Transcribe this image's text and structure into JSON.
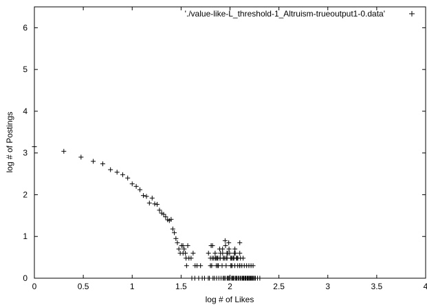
{
  "chart_data": {
    "type": "scatter",
    "title": "",
    "xlabel": "log # of Likes",
    "ylabel": "log # of Postings",
    "xlim": [
      0,
      4
    ],
    "ylim": [
      0,
      6.5
    ],
    "xticks": [
      "0",
      "0.5",
      "1",
      "1.5",
      "2",
      "2.5",
      "3",
      "3.5",
      "4"
    ],
    "xtick_values": [
      0,
      0.5,
      1,
      1.5,
      2,
      2.5,
      3,
      3.5,
      4
    ],
    "yticks": [
      "0",
      "1",
      "2",
      "3",
      "4",
      "5",
      "6"
    ],
    "ytick_values": [
      0,
      1,
      2,
      3,
      4,
      5,
      6
    ],
    "legend_position": "top-right",
    "grid": false,
    "marker": "+",
    "series": [
      {
        "name": "'./value-like-L_threshold-1_Altruism-trueoutput1-0.data'",
        "color": "#000000",
        "x": [
          0.0,
          0.301,
          0.477,
          0.602,
          0.699,
          0.778,
          0.845,
          0.903,
          0.954,
          1.0,
          1.041,
          1.079,
          1.114,
          1.146,
          1.176,
          1.204,
          1.23,
          1.255,
          1.279,
          1.301,
          1.322,
          1.342,
          1.362,
          1.38,
          1.398,
          1.415,
          1.431,
          1.447,
          1.462,
          1.477,
          1.491,
          1.505,
          1.519,
          1.531,
          1.544,
          1.556,
          1.568,
          1.58,
          1.602,
          1.623,
          1.643,
          1.663,
          1.699,
          1.716,
          1.74,
          1.778,
          1.79,
          1.8,
          1.813,
          1.826,
          1.84,
          1.851,
          1.863,
          1.875,
          1.886,
          1.898,
          1.908,
          1.919,
          1.929,
          1.94,
          1.95,
          1.96,
          1.97,
          1.98,
          1.99,
          2.0,
          2.009,
          2.017,
          2.025,
          2.033,
          2.041,
          2.049,
          2.057,
          2.064,
          2.072,
          2.079,
          2.086,
          2.093,
          2.1,
          2.107,
          2.114,
          2.121,
          2.127,
          2.134,
          2.14,
          2.146,
          2.152,
          2.158,
          2.164,
          2.17,
          2.176,
          2.182,
          2.188,
          2.193,
          2.199,
          2.204,
          2.21,
          2.215,
          2.22,
          2.225,
          2.23,
          2.236,
          2.241,
          2.25,
          2.26,
          2.281,
          2.305,
          1.807,
          1.821,
          1.848,
          1.876,
          1.903,
          1.924,
          1.954,
          1.968,
          1.987,
          2.013,
          2.045,
          2.072,
          2.1,
          1.834,
          1.869,
          1.895,
          1.932,
          1.96,
          1.996,
          2.024,
          2.053,
          2.08,
          2.107,
          2.134,
          1.82,
          1.857,
          1.9,
          1.942,
          1.978,
          2.008,
          2.036,
          2.066,
          2.1,
          1.86,
          1.925,
          1.97,
          2.02,
          2.05,
          1.95,
          1.99,
          2.04,
          2.1,
          1.78,
          1.8,
          1.88,
          1.98,
          2.01,
          1.61,
          1.64,
          1.68,
          1.55,
          1.52
        ],
        "y": [
          3.15,
          3.04,
          2.9,
          2.8,
          2.74,
          2.6,
          2.54,
          2.48,
          2.4,
          2.26,
          2.2,
          2.12,
          1.98,
          1.96,
          1.8,
          1.92,
          1.78,
          1.77,
          1.63,
          1.56,
          1.53,
          1.47,
          1.4,
          1.38,
          1.41,
          1.18,
          1.09,
          0.95,
          0.85,
          0.7,
          0.6,
          0.78,
          0.78,
          0.7,
          0.6,
          0.3,
          0.78,
          0.48,
          0.48,
          0.6,
          0.3,
          0.3,
          0.3,
          0.0,
          0.0,
          0.0,
          0.0,
          0.48,
          0.3,
          0.0,
          0.0,
          0.48,
          0.0,
          0.3,
          0.0,
          0.48,
          0.0,
          0.3,
          0.0,
          0.0,
          0.0,
          0.3,
          0.0,
          0.0,
          0.0,
          0.0,
          0.3,
          0.0,
          0.0,
          0.0,
          0.0,
          0.3,
          0.0,
          0.0,
          0.0,
          0.3,
          0.0,
          0.0,
          0.3,
          0.0,
          0.0,
          0.3,
          0.0,
          0.0,
          0.0,
          0.3,
          0.0,
          0.0,
          0.0,
          0.3,
          0.0,
          0.0,
          0.0,
          0.3,
          0.0,
          0.0,
          0.0,
          0.3,
          0.0,
          0.0,
          0.0,
          0.3,
          0.0,
          0.0,
          0.0,
          0.0,
          0.0,
          0.78,
          0.78,
          0.6,
          0.48,
          0.6,
          0.7,
          0.78,
          0.6,
          0.85,
          0.48,
          0.6,
          0.48,
          0.6,
          0.48,
          0.48,
          0.7,
          0.48,
          0.48,
          0.6,
          0.48,
          0.6,
          0.48,
          0.48,
          0.48,
          0.48,
          0.48,
          0.48,
          0.48,
          0.6,
          0.48,
          0.48,
          0.48,
          0.85,
          0.3,
          0.6,
          0.48,
          0.3,
          0.7,
          0.9,
          0.7,
          0.48,
          0.3,
          0.6,
          0.3,
          0.3,
          0.0,
          0.3,
          0.0,
          0.0,
          0.0,
          0.48,
          0.6
        ]
      }
    ]
  }
}
